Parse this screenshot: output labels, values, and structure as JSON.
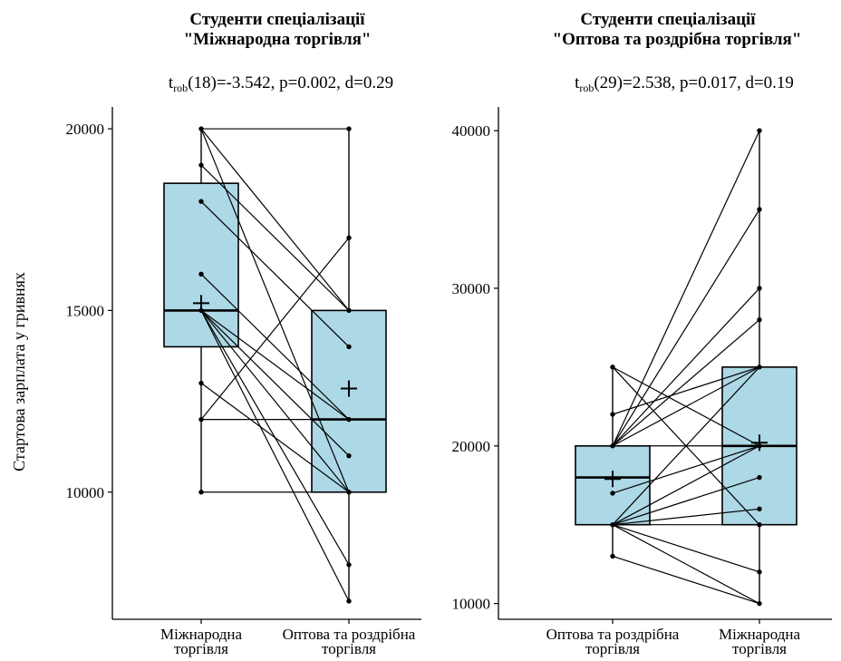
{
  "colors": {
    "box_fill": "#add8e6",
    "stroke": "#000000",
    "background": "#ffffff"
  },
  "ylabel": "Стартова зарплата у гривнях",
  "chart_data": [
    {
      "type": "boxplot",
      "title_line1": "Студенти спеціалізації",
      "title_line2": "\"Міжнародна торгівля\"",
      "stat": {
        "pre": "t",
        "sub": "rob",
        "post": "(18)=-3.542, p=0.002, d=0.29"
      },
      "categories": [
        {
          "line1": "Міжнародна",
          "line2": "торгівля"
        },
        {
          "line1": "Оптова та роздрібна",
          "line2": "торгівля"
        }
      ],
      "ylim": [
        6500,
        20600
      ],
      "yticks": [
        10000,
        15000,
        20000
      ],
      "boxes": [
        {
          "q1": 14000,
          "median": 15000,
          "q3": 18500,
          "min": 10000,
          "max": 20000,
          "mean": 15200
        },
        {
          "q1": 10000,
          "median": 12000,
          "q3": 15000,
          "min": 7000,
          "max": 20000,
          "mean": 12850
        }
      ],
      "pairs": [
        [
          20000,
          20000
        ],
        [
          20000,
          15000
        ],
        [
          20000,
          10000
        ],
        [
          19000,
          15000
        ],
        [
          18000,
          14000
        ],
        [
          16000,
          12000
        ],
        [
          15000,
          12000
        ],
        [
          15000,
          11000
        ],
        [
          15000,
          10000
        ],
        [
          15000,
          8000
        ],
        [
          15000,
          7000
        ],
        [
          13000,
          10000
        ],
        [
          12000,
          17000
        ],
        [
          12000,
          12000
        ],
        [
          10000,
          10000
        ]
      ]
    },
    {
      "type": "boxplot",
      "title_line1": "Студенти спеціалізації",
      "title_line2": "\"Оптова та роздрібна торгівля\"",
      "stat": {
        "pre": "t",
        "sub": "rob",
        "post": "(29)=2.538, p=0.017, d=0.19"
      },
      "categories": [
        {
          "line1": "Оптова та роздрібна",
          "line2": "торгівля"
        },
        {
          "line1": "Міжнародна",
          "line2": "торгівля"
        }
      ],
      "ylim": [
        9000,
        41500
      ],
      "yticks": [
        10000,
        20000,
        30000,
        40000
      ],
      "boxes": [
        {
          "q1": 15000,
          "median": 18000,
          "q3": 20000,
          "min": 13000,
          "max": 25000,
          "mean": 17900
        },
        {
          "q1": 15000,
          "median": 20000,
          "q3": 25000,
          "min": 10000,
          "max": 40000,
          "mean": 20200
        }
      ],
      "pairs": [
        [
          20000,
          40000
        ],
        [
          20000,
          35000
        ],
        [
          20000,
          30000
        ],
        [
          20000,
          28000
        ],
        [
          20000,
          25000
        ],
        [
          20000,
          20000
        ],
        [
          22000,
          25000
        ],
        [
          25000,
          15000
        ],
        [
          25000,
          20000
        ],
        [
          17000,
          20000
        ],
        [
          15000,
          25000
        ],
        [
          15000,
          20000
        ],
        [
          15000,
          18000
        ],
        [
          15000,
          16000
        ],
        [
          15000,
          15000
        ],
        [
          15000,
          12000
        ],
        [
          15000,
          10000
        ],
        [
          13000,
          10000
        ]
      ]
    }
  ]
}
